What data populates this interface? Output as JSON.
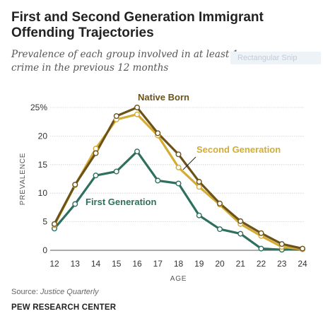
{
  "title": "First and Second Generation Immigrant Offending Trajectories",
  "subtitle": "Prevalence of each group involved in at least 1 crime in the previous 12 months",
  "overlay_label": "Rectangular Snip",
  "source_label": "Source:",
  "source_text": "Justice Quarterly",
  "organization": "PEW RESEARCH CENTER",
  "colors": {
    "native_born": "#6b5218",
    "second_generation": "#d4ac35",
    "first_generation": "#2e6f5e",
    "grid": "#cfcfcf",
    "axis_text": "#333333"
  },
  "chart_data": {
    "type": "line",
    "x": [
      12,
      13,
      14,
      15,
      16,
      17,
      18,
      19,
      20,
      21,
      22,
      23,
      24
    ],
    "xlabel": "AGE",
    "ylabel": "PREVALENCE",
    "ylim": [
      0,
      25
    ],
    "yticks": [
      "0",
      "5",
      "10",
      "15",
      "20",
      "25%"
    ],
    "ytick_values": [
      0,
      5,
      10,
      15,
      20,
      25
    ],
    "grid": true,
    "series": [
      {
        "name": "Native Born",
        "color": "#6b5218",
        "values": [
          4.6,
          11.5,
          17.0,
          23.5,
          25.0,
          20.5,
          16.8,
          12.0,
          8.2,
          5.1,
          3.0,
          1.1,
          0.3
        ]
      },
      {
        "name": "Second Generation",
        "color": "#d4ac35",
        "values": [
          4.4,
          11.4,
          17.8,
          22.9,
          23.8,
          20.1,
          14.5,
          11.1,
          8.0,
          4.6,
          2.5,
          0.6,
          0.2
        ]
      },
      {
        "name": "First Generation",
        "color": "#2e6f5e",
        "values": [
          3.8,
          8.1,
          13.1,
          13.8,
          17.3,
          12.2,
          11.7,
          6.1,
          3.7,
          2.9,
          0.3,
          0.1,
          0.2
        ]
      }
    ]
  }
}
